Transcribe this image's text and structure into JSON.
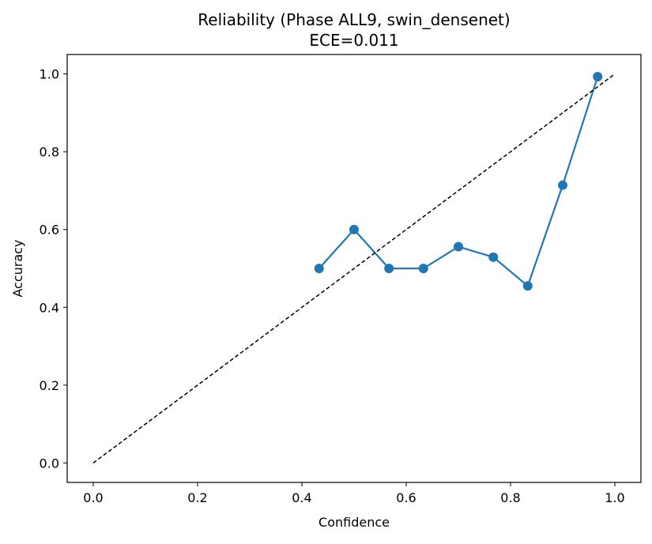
{
  "chart_data": {
    "type": "line",
    "title": "Reliability (Phase ALL9, swin_densenet)",
    "subtitle": "ECE=0.011",
    "xlabel": "Confidence",
    "ylabel": "Accuracy",
    "xlim": [
      -0.05,
      1.05
    ],
    "ylim": [
      -0.05,
      1.05
    ],
    "xticks": [
      0.0,
      0.2,
      0.4,
      0.6,
      0.8,
      1.0
    ],
    "xtick_labels": [
      "0.0",
      "0.2",
      "0.4",
      "0.6",
      "0.8",
      "1.0"
    ],
    "yticks": [
      0.0,
      0.2,
      0.4,
      0.6,
      0.8,
      1.0
    ],
    "ytick_labels": [
      "0.0",
      "0.2",
      "0.4",
      "0.6",
      "0.8",
      "1.0"
    ],
    "grid": false,
    "legend": "none",
    "series": [
      {
        "style": "line-with-markers",
        "color": "#1f77b4",
        "x": [
          0.433,
          0.5,
          0.567,
          0.633,
          0.7,
          0.767,
          0.833,
          0.9,
          0.967
        ],
        "y": [
          0.5,
          0.6,
          0.5,
          0.5,
          0.556,
          0.529,
          0.455,
          0.714,
          0.993
        ]
      },
      {
        "style": "dashed-reference",
        "color": "#000000",
        "x": [
          0.0,
          1.0
        ],
        "y": [
          0.0,
          1.0
        ]
      }
    ]
  }
}
